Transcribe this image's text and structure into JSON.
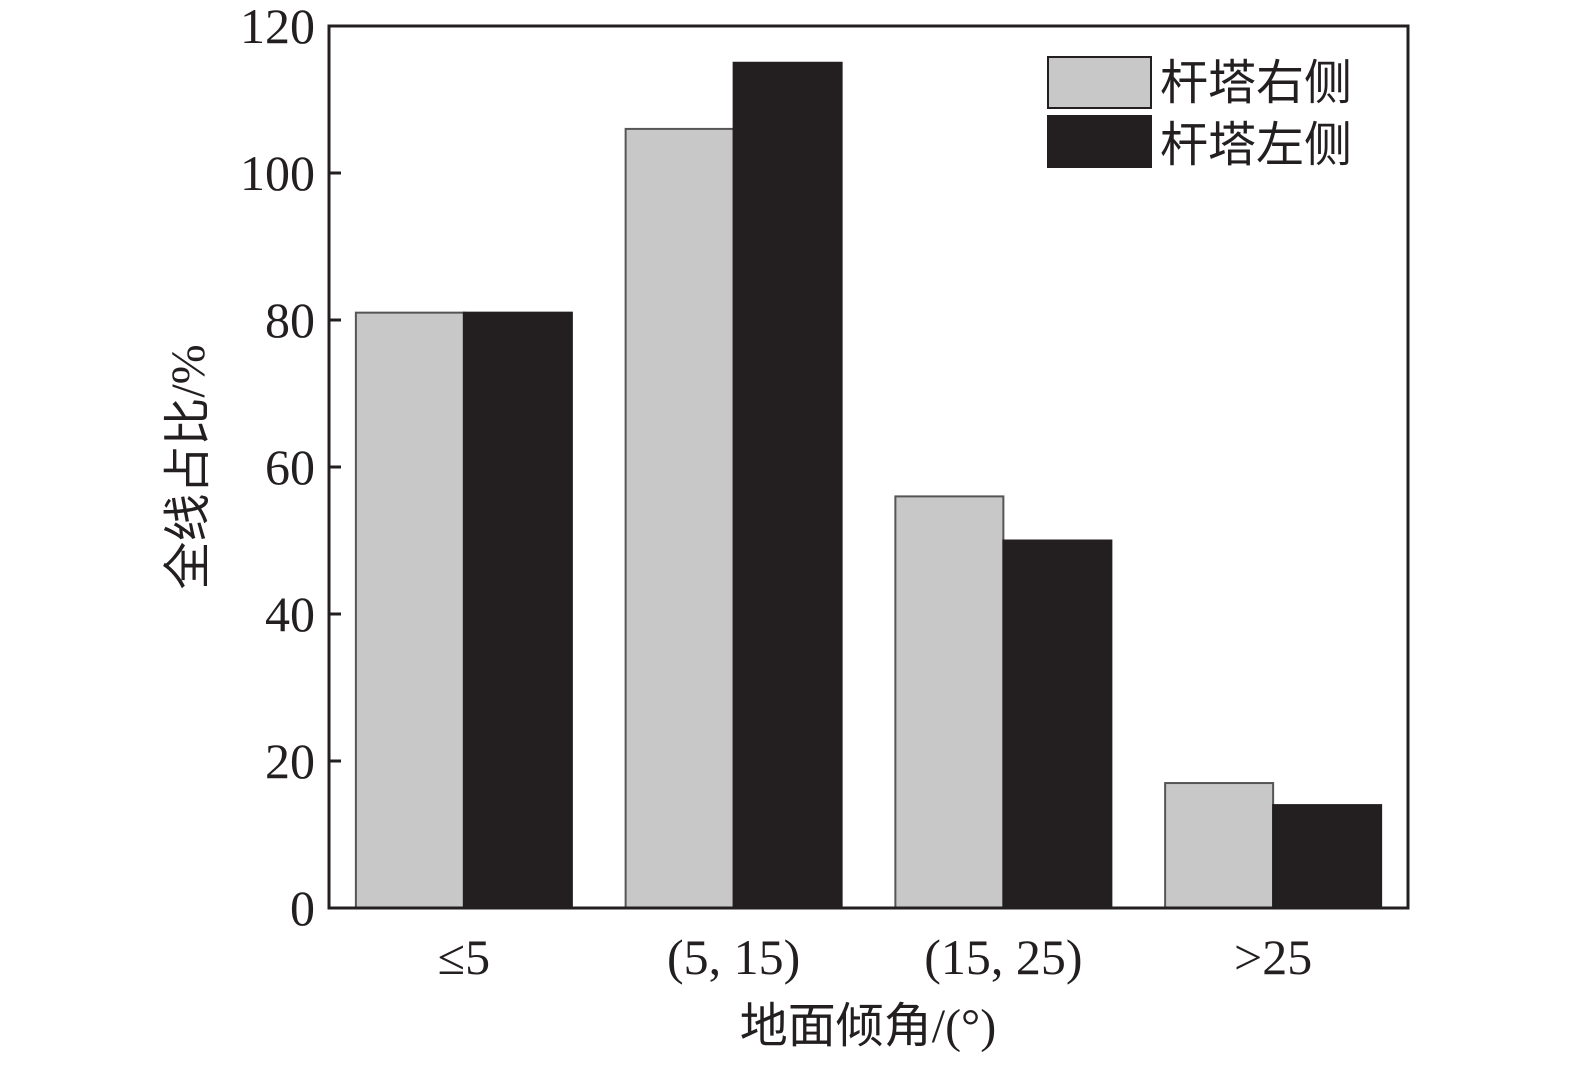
{
  "chart_data": {
    "type": "bar",
    "categories": [
      "≤5",
      "(5, 15)",
      "(15, 25)",
      ">25"
    ],
    "series": [
      {
        "name": "杆塔右侧",
        "values": [
          81,
          106,
          56,
          17
        ],
        "color": "#c8c8c8"
      },
      {
        "name": "杆塔左侧",
        "values": [
          81,
          115,
          50,
          14
        ],
        "color": "#231f20"
      }
    ],
    "xlabel": "地面倾角/(°)",
    "ylabel": "全线占比/%",
    "ylim": [
      0,
      120
    ],
    "yticks": [
      "0",
      "20",
      "40",
      "60",
      "80",
      "100",
      "120"
    ],
    "grid": false,
    "legend_position": "top-right"
  }
}
